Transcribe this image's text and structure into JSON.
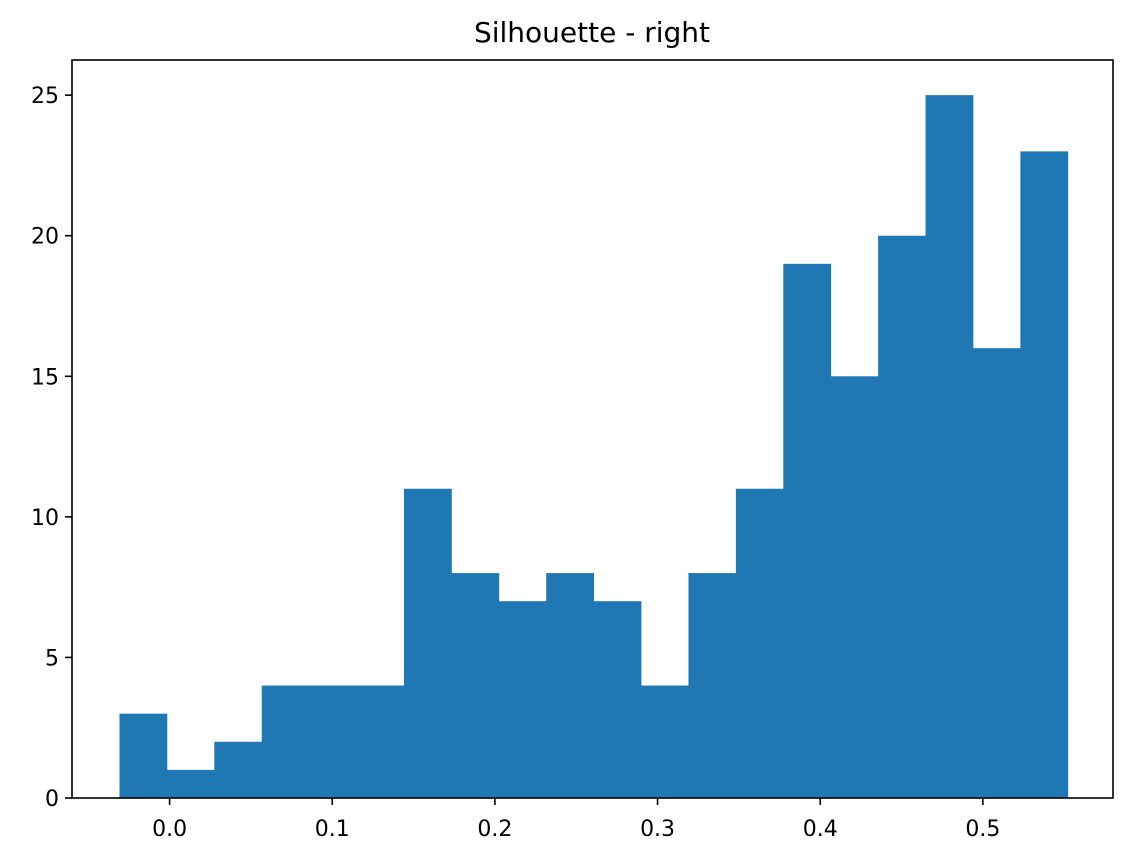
{
  "chart_data": {
    "type": "bar",
    "subtype": "histogram",
    "title": "Silhouette - right",
    "xlabel": "",
    "ylabel": "",
    "bin_edges": [
      -0.0308,
      -0.00165,
      0.0275,
      0.05665,
      0.0858,
      0.11495,
      0.1441,
      0.17325,
      0.2024,
      0.23155,
      0.2607,
      0.28985,
      0.319,
      0.34815,
      0.3773,
      0.40645,
      0.4356,
      0.46475,
      0.4939,
      0.52305,
      0.5522
    ],
    "values": [
      3,
      1,
      2,
      4,
      4,
      4,
      11,
      8,
      7,
      8,
      7,
      4,
      8,
      11,
      19,
      15,
      20,
      25,
      16,
      23
    ],
    "xlim": [
      -0.06,
      0.58
    ],
    "ylim": [
      0,
      26.25
    ],
    "xticks": [
      0.0,
      0.1,
      0.2,
      0.3,
      0.4,
      0.5
    ],
    "xtick_labels": [
      "0.0",
      "0.1",
      "0.2",
      "0.3",
      "0.4",
      "0.5"
    ],
    "yticks": [
      0,
      5,
      10,
      15,
      20,
      25
    ],
    "ytick_labels": [
      "0",
      "5",
      "10",
      "15",
      "20",
      "25"
    ],
    "bar_color": "#1f77b4",
    "grid": false,
    "legend": false
  }
}
